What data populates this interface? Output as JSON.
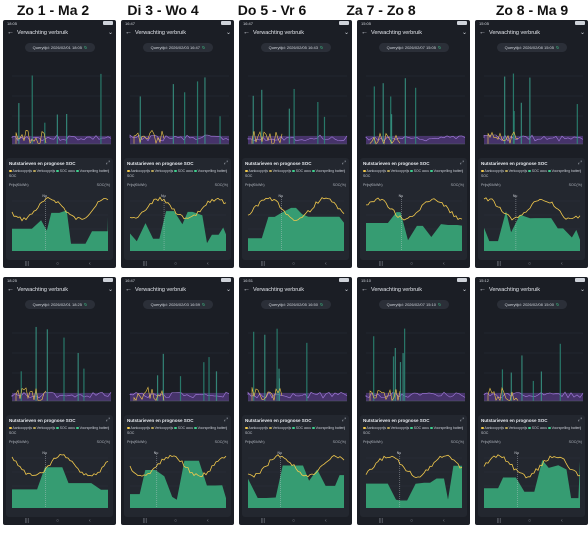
{
  "columns": [
    "Zo 1 - Ma 2",
    "Di 3 - Wo 4",
    "Do 5 - Vr 6",
    "Za 7 - Zo 8",
    "Zo 8 - Ma 9"
  ],
  "icons": {
    "back": "arrow-left-icon",
    "more": "chevron-icon",
    "refresh": "refresh-icon",
    "expand": "expand-icon",
    "nav_recents": "recents-icon",
    "nav_home": "home-icon",
    "nav_back": "back-icon"
  },
  "colors": {
    "background": "#1b1e25",
    "card": "#23272f",
    "aankoopprijs": "#f2c94c",
    "verkoopprijs": "#b7a45a",
    "soc": "#3fcf8e",
    "consumption": "#7d4dbf"
  },
  "glyphs": {
    "back": "←",
    "more": "⌄",
    "refresh": "↻",
    "expand": "⤢",
    "nav_recents": "|||",
    "nav_home": "○",
    "nav_back": "‹"
  },
  "phones": [
    {
      "time": "18:05",
      "title": "Verwachting verbruik",
      "query": "Querytijd: 2026/02/01 18:05",
      "card_title": "Nutstarieven en prognose SOC",
      "legend": [
        "Aankoopprijs",
        "Verkoopprijs",
        "SOC accu",
        "Voorspelling batterij SOC"
      ],
      "left_axis": "Prijs(€/kWh)",
      "right_axis": "SOC(%)",
      "marker": "Nu"
    },
    {
      "time": "16:47",
      "title": "Verwachting verbruik",
      "query": "Querytijd: 2026/02/03 16:47",
      "card_title": "Nutstarieven en prognose SOC",
      "legend": [
        "Aankoopprijs",
        "Verkoopprijs",
        "SOC accu",
        "Voorspelling batterij SOC"
      ],
      "left_axis": "Prijs(€/kWh)",
      "right_axis": "SOC(%)",
      "marker": "Nu"
    },
    {
      "time": "16:47",
      "title": "Verwachting verbruik",
      "query": "Querytijd: 2026/02/05 16:43",
      "card_title": "Nutstarieven en prognose SOC",
      "legend": [
        "Aankoopprijs",
        "Verkoopprijs",
        "SOC accu",
        "Voorspelling batterij SOC"
      ],
      "left_axis": "Prijs(€/kWh)",
      "right_axis": "SOC(%)",
      "marker": "Nu"
    },
    {
      "time": "15:05",
      "title": "Verwachting verbruik",
      "query": "Querytijd: 2026/02/07 15:05",
      "card_title": "Nutstarieven en prognose SOC",
      "legend": [
        "Aankoopprijs",
        "Verkoopprijs",
        "SOC accu",
        "Voorspelling batterij SOC"
      ],
      "left_axis": "Prijs(€/kWh)",
      "right_axis": "SOC(%)",
      "marker": "Nu"
    },
    {
      "time": "15:05",
      "title": "Verwachting verbruik",
      "query": "Querytijd: 2026/02/08 15:05",
      "card_title": "Nutstarieven en prognose SOC",
      "legend": [
        "Aankoopprijs",
        "Verkoopprijs",
        "SOC accu",
        "Voorspelling batterij SOC"
      ],
      "left_axis": "Prijs(€/kWh)",
      "right_axis": "SOC(%)",
      "marker": "Nu"
    },
    {
      "time": "18:25",
      "title": "Verwachting verbruik",
      "query": "Querytijd: 2026/02/01 18:25",
      "card_title": "Nutstarieven en prognose SOC",
      "legend": [
        "Aankoopprijs",
        "Verkoopprijs",
        "SOC accu",
        "Voorspelling batterij SOC"
      ],
      "left_axis": "Prijs(€/kWh)",
      "right_axis": "SOC(%)",
      "marker": "Nu"
    },
    {
      "time": "16:47",
      "title": "Verwachting verbruik",
      "query": "Querytijd: 2026/02/03 16:59",
      "card_title": "Nutstarieven en prognose SOC",
      "legend": [
        "Aankoopprijs",
        "Verkoopprijs",
        "SOC accu",
        "Voorspelling batterij SOC"
      ],
      "left_axis": "Prijs(€/kWh)",
      "right_axis": "SOC(%)",
      "marker": "Nu"
    },
    {
      "time": "16:51",
      "title": "Verwachting verbruik",
      "query": "Querytijd: 2026/02/05 16:50",
      "card_title": "Nutstarieven en prognose SOC",
      "legend": [
        "Aankoopprijs",
        "Verkoopprijs",
        "SOC accu",
        "Voorspelling batterij SOC"
      ],
      "left_axis": "Prijs(€/kWh)",
      "right_axis": "SOC(%)",
      "marker": "Nu"
    },
    {
      "time": "15:10",
      "title": "Verwachting verbruik",
      "query": "Querytijd: 2026/02/07 15:10",
      "card_title": "Nutstarieven en prognose SOC",
      "legend": [
        "Aankoopprijs",
        "Verkoopprijs",
        "SOC accu",
        "Voorspelling batterij SOC"
      ],
      "left_axis": "Prijs(€/kWh)",
      "right_axis": "SOC(%)",
      "marker": "Nu"
    },
    {
      "time": "15:12",
      "title": "Verwachting verbruik",
      "query": "Querytijd: 2026/02/08 15:00",
      "card_title": "Nutstarieven en prognose SOC",
      "legend": [
        "Aankoopprijs",
        "Verkoopprijs",
        "SOC accu",
        "Voorspelling batterij SOC"
      ],
      "left_axis": "Prijs(€/kWh)",
      "right_axis": "SOC(%)",
      "marker": "Nu"
    }
  ]
}
